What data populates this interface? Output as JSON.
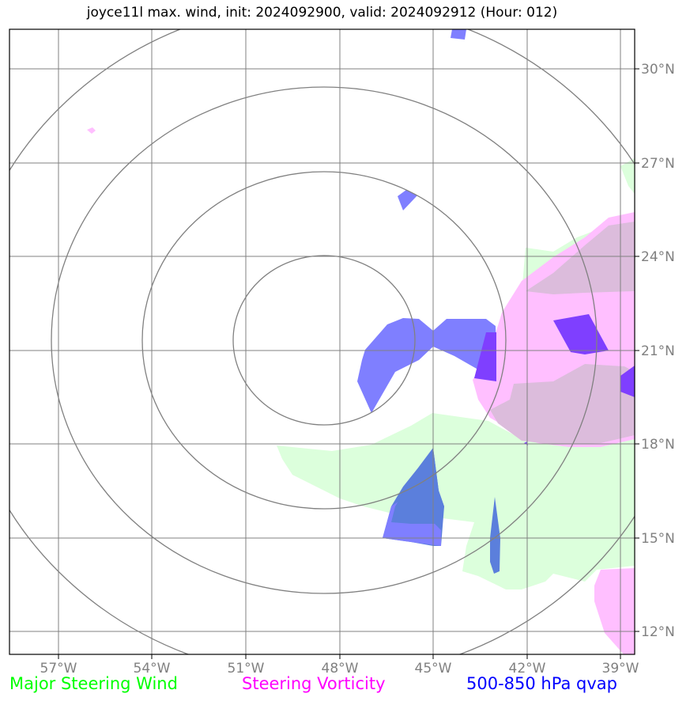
{
  "title": "joyce11l max. wind, init: 2024092900, valid: 2024092912 (Hour: 012)",
  "lon_ticks": [
    "57°W",
    "54°W",
    "51°W",
    "48°W",
    "45°W",
    "42°W",
    "39°W"
  ],
  "lat_ticks": [
    "30°N",
    "27°N",
    "24°N",
    "21°N",
    "18°N",
    "15°N",
    "12°N"
  ],
  "legend": {
    "wind": {
      "label": "Major Steering Wind",
      "color": "#00ff00"
    },
    "vorticity": {
      "label": "Steering Vorticity",
      "color": "#ff00ff"
    },
    "qvap": {
      "label": "500-850 hPa qvap",
      "color": "#0000ff"
    }
  },
  "layers": {
    "wind_fill": "#dcffdc",
    "vorticity_fill": "#ffbfff",
    "overlap_fill": "#dcbcdc",
    "qvap_fill": "#7f7fff",
    "qvap_dark_fill": "#7f3fff",
    "qvap_on_wind_fill": "#5b7fdc"
  }
}
